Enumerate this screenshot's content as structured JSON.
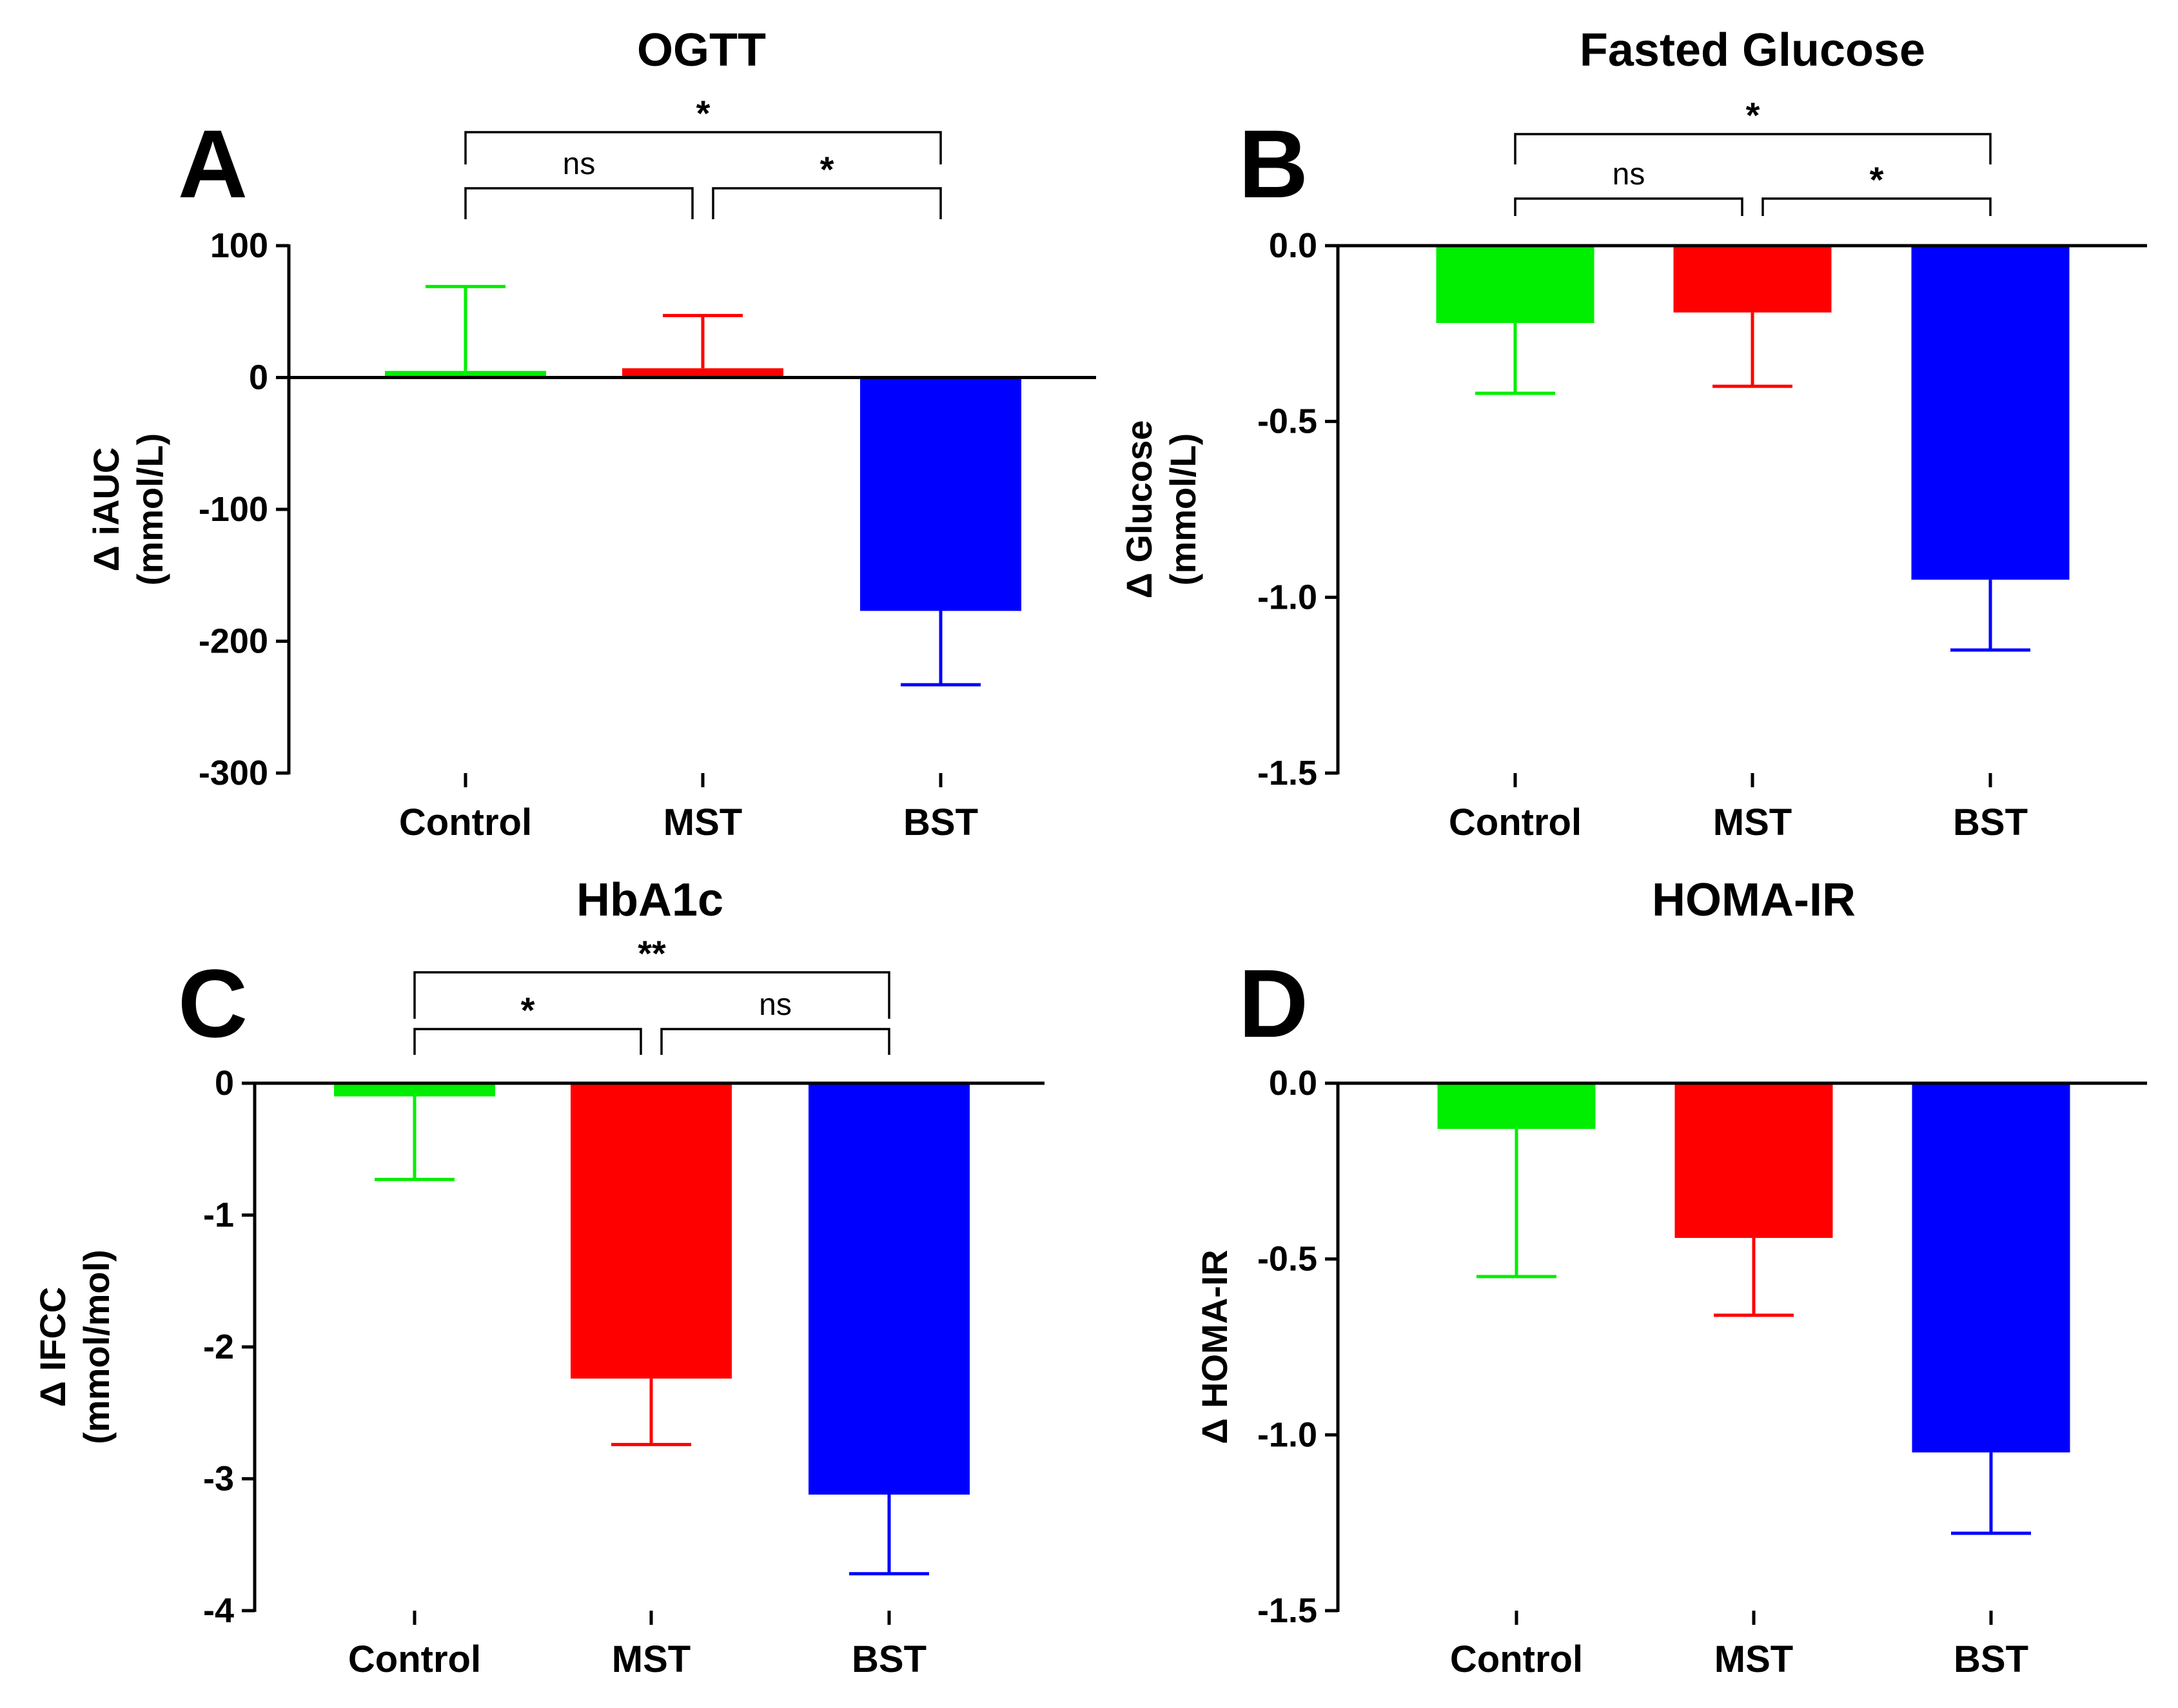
{
  "chart_data": [
    {
      "type": "bar",
      "panel": "A",
      "title": "OGTT",
      "ylabel": [
        "Δ iAUC",
        "(mmol/L)"
      ],
      "categories": [
        "Control",
        "MST",
        "BST"
      ],
      "values": [
        5,
        7,
        -177
      ],
      "errors": [
        64,
        40,
        56
      ],
      "colors": [
        "#00ee00",
        "#ff0000",
        "#0000ff"
      ],
      "ylim": [
        -300,
        100
      ],
      "yticks": [
        100,
        0,
        -100,
        -200,
        -300
      ],
      "ytick_labels": [
        "100",
        "0",
        "-100",
        "-200",
        "-300"
      ],
      "comparisons": [
        {
          "a": 0,
          "b": 1,
          "label": "ns"
        },
        {
          "a": 1,
          "b": 2,
          "label": "*"
        },
        {
          "a": 0,
          "b": 2,
          "label": "*"
        }
      ]
    },
    {
      "type": "bar",
      "panel": "B",
      "title": "Fasted Glucose",
      "ylabel": [
        "Δ Glucose",
        "(mmol/L)"
      ],
      "categories": [
        "Control",
        "MST",
        "BST"
      ],
      "values": [
        -0.22,
        -0.19,
        -0.95
      ],
      "errors": [
        0.2,
        0.21,
        0.2
      ],
      "colors": [
        "#00ee00",
        "#ff0000",
        "#0000ff"
      ],
      "ylim": [
        -1.5,
        0.0
      ],
      "yticks": [
        0.0,
        -0.5,
        -1.0,
        -1.5
      ],
      "ytick_labels": [
        "0.0",
        "-0.5",
        "-1.0",
        "-1.5"
      ],
      "comparisons": [
        {
          "a": 0,
          "b": 1,
          "label": "ns"
        },
        {
          "a": 1,
          "b": 2,
          "label": "*"
        },
        {
          "a": 0,
          "b": 2,
          "label": "*"
        }
      ]
    },
    {
      "type": "bar",
      "panel": "C",
      "title": "HbA1c",
      "ylabel": [
        "Δ IFCC",
        "(mmol/mol)"
      ],
      "categories": [
        "Control",
        "MST",
        "BST"
      ],
      "values": [
        -0.1,
        -2.24,
        -3.12
      ],
      "errors": [
        0.63,
        0.5,
        0.6
      ],
      "colors": [
        "#00ee00",
        "#ff0000",
        "#0000ff"
      ],
      "ylim": [
        -4,
        0
      ],
      "yticks": [
        0,
        -1,
        -2,
        -3,
        -4
      ],
      "ytick_labels": [
        "0",
        "-1",
        "-2",
        "-3",
        "-4"
      ],
      "comparisons": [
        {
          "a": 0,
          "b": 1,
          "label": "*"
        },
        {
          "a": 1,
          "b": 2,
          "label": "ns"
        },
        {
          "a": 0,
          "b": 2,
          "label": "**"
        }
      ]
    },
    {
      "type": "bar",
      "panel": "D",
      "title": "HOMA-IR",
      "ylabel": [
        "Δ HOMA-IR"
      ],
      "categories": [
        "Control",
        "MST",
        "BST"
      ],
      "values": [
        -0.13,
        -0.44,
        -1.05
      ],
      "errors": [
        0.42,
        0.22,
        0.23
      ],
      "colors": [
        "#00ee00",
        "#ff0000",
        "#0000ff"
      ],
      "ylim": [
        -1.5,
        0.0
      ],
      "yticks": [
        0.0,
        -0.5,
        -1.0,
        -1.5
      ],
      "ytick_labels": [
        "0.0",
        "-0.5",
        "-1.0",
        "-1.5"
      ],
      "comparisons": []
    }
  ]
}
